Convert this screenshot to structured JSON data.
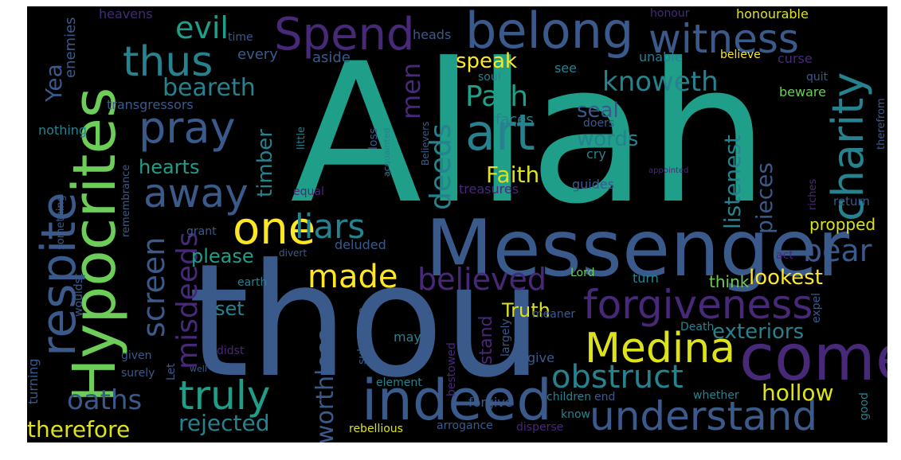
{
  "colors": {
    "background": "#000000",
    "teal": "#1f9e89",
    "blue": "#3b5a8c",
    "purple": "#482878",
    "green": "#6cce59",
    "yellow": "#dde318",
    "cyan": "#26828e"
  },
  "words": {
    "allah": "Allah",
    "thou": "thou",
    "messenger": "Messenger",
    "hypocrites": "Hypocrites",
    "come": "come",
    "indeed": "indeed",
    "understand": "understand",
    "belong": "belong",
    "spend": "Spend",
    "witness": "witness",
    "charity": "charity",
    "respite": "respite",
    "thus": "thus",
    "art": "art",
    "pray": "pray",
    "away": "away",
    "one": "one",
    "liars": "liars",
    "forgiveness": "forgiveness",
    "medina": "Medina",
    "truly": "truly",
    "obstruct": "obstruct",
    "believed": "believed",
    "made": "made",
    "bear": "bear",
    "evil": "evil",
    "beareth": "beareth",
    "knoweth": "knoweth",
    "path": "Path",
    "deeds": "deeds",
    "men": "men",
    "yea": "Yea",
    "screen": "screen",
    "misdeeds": "misdeeds",
    "oaths": "oaths",
    "therefore": "therefore",
    "rejected": "rejected",
    "worthless": "worthless",
    "hollow": "hollow",
    "exteriors": "exteriors",
    "lookest": "lookest",
    "listenest": "listenest",
    "pieces": "pieces",
    "faith": "Faith",
    "words": "words",
    "seal": "seal",
    "speak": "speak",
    "timber": "timber",
    "hearts": "hearts",
    "please": "please",
    "set": "set",
    "truth": "Truth",
    "stand": "stand",
    "propped": "propped",
    "think": "think",
    "heavens": "heavens",
    "enemies": "enemies",
    "transgressors": "transgressors",
    "nothing": "nothing",
    "heads": "heads",
    "every": "every",
    "aside": "aside",
    "see": "see",
    "soul": "soul",
    "time": "time",
    "honour": "honour",
    "honourable": "honourable",
    "believe": "believe",
    "unable": "unable",
    "curse": "curse",
    "quit": "quit",
    "beware": "beware",
    "faces": "faces",
    "doers": "doers",
    "cry": "cry",
    "loss": "loss",
    "acquainted": "acquainted",
    "believers": "Believers",
    "little": "little",
    "something": "something",
    "remembrance": "remembrance",
    "turning": "turning",
    "wouldst": "wouldst",
    "grant": "grant",
    "divert": "divert",
    "deluded": "deluded",
    "equal": "equal",
    "treasures": "treasures",
    "guides": "guides",
    "appointed": "appointed",
    "riches": "riches",
    "return": "return",
    "therefrom": "therefrom",
    "act": "act",
    "expel": "expel",
    "lord": "Lord",
    "turn": "turn",
    "earth": "earth",
    "substance": "substance",
    "bestowed": "bestowed",
    "largely": "largely",
    "meaner": "meaner",
    "death": "Death",
    "may": "may",
    "let": "Let",
    "didst": "didst",
    "given": "given",
    "surely": "surely",
    "well": "well",
    "give": "give",
    "forgive": "forgive",
    "element": "element",
    "children": "children",
    "end": "end",
    "whether": "whether",
    "good": "good",
    "know": "know",
    "rebellious": "rebellious",
    "arrogance": "arrogance",
    "disperse": "disperse"
  }
}
